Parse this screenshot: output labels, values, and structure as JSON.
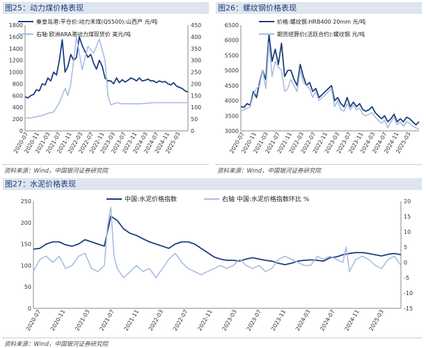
{
  "figures": [
    {
      "header": "图25：动力煤价格表现",
      "source": "资料来源：Wind，中国银河证券研究院"
    },
    {
      "header": "图26：螺纹钢价格表现",
      "source": "资料来源：Wind，中国银河证券研究院"
    },
    {
      "header": "图27：水泥价格表现",
      "source": "资料来源：Wind，中国银河证券研究院"
    }
  ],
  "colors": {
    "dark_series": "#1b3d7d",
    "light_series": "#a8bde0",
    "header_bg": "#dfe5ef"
  },
  "chart_data": [
    {
      "type": "line",
      "title": "动力煤价格表现",
      "x_tick_labels": [
        "2020-07",
        "2020-11",
        "2021-03",
        "2021-07",
        "2021-11",
        "2022-03",
        "2022-07",
        "2022-11",
        "2023-03",
        "2023-07",
        "2023-11",
        "2024-03",
        "2024-07",
        "2024-11",
        "2025-03"
      ],
      "ylim": [
        0,
        1800
      ],
      "yticks": [
        "0",
        "200",
        "400",
        "600",
        "800",
        "1000",
        "1200",
        "1400",
        "1600",
        "1800"
      ],
      "y2lim": [
        0,
        450
      ],
      "y2ticks": [
        "0",
        "50",
        "100",
        "150",
        "200",
        "250",
        "300",
        "350",
        "400",
        "450"
      ],
      "series": [
        {
          "name": "秦皇岛港:平仓价:动力末煤(Q5500):山西产 元/吨",
          "axis": "left",
          "x": [
            0,
            1,
            2,
            3,
            4,
            5,
            6,
            7,
            8,
            9,
            10,
            11,
            12,
            13,
            14,
            15,
            16,
            17,
            18,
            19,
            20,
            21,
            22,
            23,
            24,
            25,
            26,
            27,
            28,
            29,
            30,
            31,
            32,
            33,
            34,
            35,
            36,
            37,
            38,
            39,
            40,
            41,
            42,
            43,
            44,
            45,
            46,
            47,
            48,
            49,
            50,
            51,
            52,
            53,
            54,
            55,
            56,
            57
          ],
          "values": [
            580,
            560,
            600,
            620,
            700,
            680,
            800,
            780,
            900,
            850,
            1000,
            950,
            1200,
            1550,
            1000,
            1100,
            1300,
            1200,
            1250,
            1600,
            1450,
            1350,
            1250,
            1300,
            1150,
            1050,
            1200,
            1100,
            900,
            850,
            850,
            800,
            900,
            820,
            870,
            830,
            860,
            900,
            880,
            850,
            900,
            850,
            860,
            880,
            850,
            850,
            820,
            850,
            830,
            840,
            800,
            780,
            820,
            760,
            740,
            720,
            680,
            660
          ]
        },
        {
          "name": "右轴 欧洲ARA港动力煤现货价 美元/吨",
          "axis": "right",
          "x": [
            0,
            2,
            4,
            6,
            8,
            10,
            12,
            14,
            15,
            16,
            18,
            20,
            22,
            24,
            26,
            28,
            29,
            30,
            32,
            34,
            36,
            40,
            45,
            50,
            55,
            57
          ],
          "values": [
            55,
            55,
            60,
            65,
            75,
            80,
            120,
            180,
            150,
            200,
            400,
            260,
            360,
            330,
            390,
            300,
            150,
            110,
            120,
            115,
            115,
            115,
            120,
            120,
            120,
            120
          ]
        }
      ]
    },
    {
      "type": "line",
      "title": "螺纹钢价格表现",
      "x_tick_labels": [
        "2020-07",
        "2020-11",
        "2021-03",
        "2021-07",
        "2021-11",
        "2022-03",
        "2022-07",
        "2022-11",
        "2023-03",
        "2023-07",
        "2023-11",
        "2024-03",
        "2024-07",
        "2024-11",
        "2025-03"
      ],
      "ylim": [
        3000,
        6500
      ],
      "yticks": [
        "3000",
        "3500",
        "4000",
        "4500",
        "5000",
        "5500",
        "6000",
        "6500"
      ],
      "series": [
        {
          "name": "价格:螺纹钢:HRB400 20mm 元/吨",
          "x": [
            0,
            1,
            2,
            3,
            4,
            5,
            6,
            7,
            8,
            9,
            10,
            11,
            12,
            13,
            14,
            15,
            16,
            17,
            18,
            19,
            20,
            21,
            22,
            23,
            24,
            25,
            26,
            27,
            28,
            29,
            30,
            31,
            32,
            33,
            34,
            35,
            36,
            37,
            38,
            39,
            40,
            41,
            42,
            43,
            44,
            45,
            46,
            47,
            48,
            49,
            50,
            51,
            52,
            53,
            54,
            55,
            56,
            57
          ],
          "values": [
            3800,
            3780,
            3900,
            3850,
            4300,
            4100,
            4600,
            5000,
            4700,
            6200,
            5300,
            5700,
            5200,
            5900,
            4800,
            5000,
            5000,
            4700,
            4500,
            5200,
            4800,
            4500,
            4600,
            4300,
            4400,
            4100,
            4200,
            4300,
            4400,
            4500,
            4000,
            4100,
            3900,
            3800,
            4100,
            3800,
            3950,
            3800,
            3900,
            3700,
            3650,
            3700,
            3800,
            3600,
            3500,
            3400,
            3500,
            3300,
            3400,
            3550,
            3300,
            3400,
            3300,
            3450,
            3400,
            3300,
            3200,
            3300
          ]
        },
        {
          "name": "期货结算价(活跃合约):螺纹钢 元/吨",
          "x": [
            0,
            1,
            2,
            3,
            4,
            5,
            6,
            7,
            8,
            9,
            10,
            11,
            12,
            13,
            14,
            15,
            16,
            17,
            18,
            19,
            20,
            21,
            22,
            23,
            24,
            25,
            26,
            27,
            28,
            29,
            30,
            31,
            32,
            33,
            34,
            35,
            36,
            37,
            38,
            39,
            40,
            41,
            42,
            43,
            44,
            45,
            46,
            47,
            48,
            49,
            50,
            51,
            52,
            53,
            54,
            55,
            56,
            57
          ],
          "values": [
            3650,
            3700,
            3750,
            3800,
            4200,
            4400,
            4500,
            5000,
            4400,
            5900,
            4800,
            5300,
            5100,
            5000,
            4300,
            4400,
            4700,
            4500,
            4300,
            5000,
            4600,
            4500,
            4400,
            4100,
            4300,
            4000,
            4100,
            4200,
            4300,
            4400,
            3800,
            4000,
            3700,
            3650,
            3900,
            3700,
            3850,
            3700,
            3750,
            3550,
            3500,
            3550,
            3600,
            3450,
            3350,
            3250,
            3350,
            3100,
            3300,
            3450,
            3200,
            3300,
            3150,
            3300,
            3250,
            3150,
            3100,
            3050
          ]
        }
      ]
    },
    {
      "type": "line",
      "title": "水泥价格表现",
      "x_tick_labels": [
        "2020-07",
        "2020-11",
        "2021-03",
        "2021-07",
        "2021-11",
        "2022-03",
        "2022-07",
        "2022-11",
        "2023-03",
        "2023-07",
        "2023-11",
        "2024-03",
        "2024-07",
        "2024-11",
        "2025-03"
      ],
      "ylim": [
        0,
        250
      ],
      "yticks": [
        "0",
        "50",
        "100",
        "150",
        "200",
        "250"
      ],
      "y2lim": [
        -15,
        20
      ],
      "y2ticks": [
        "-15",
        "-10",
        "-5",
        "0",
        "5",
        "10",
        "15",
        "20"
      ],
      "series": [
        {
          "name": "中国:水泥价格指数",
          "axis": "left",
          "x": [
            0,
            1,
            2,
            3,
            4,
            5,
            6,
            7,
            8,
            9,
            10,
            11,
            12,
            13,
            14,
            15,
            16,
            17,
            18,
            19,
            20,
            21,
            22,
            23,
            24,
            25,
            26,
            27,
            28,
            29,
            30,
            31,
            32,
            33,
            34,
            35,
            36,
            37,
            38,
            39,
            40,
            41,
            42,
            43,
            44,
            45,
            46,
            47,
            48,
            49,
            50,
            51,
            52,
            53,
            54,
            55,
            56,
            57
          ],
          "values": [
            138,
            140,
            150,
            155,
            155,
            148,
            145,
            150,
            160,
            155,
            150,
            145,
            215,
            205,
            185,
            175,
            170,
            162,
            155,
            150,
            145,
            140,
            150,
            155,
            155,
            150,
            140,
            130,
            120,
            115,
            112,
            112,
            110,
            115,
            118,
            115,
            112,
            110,
            105,
            102,
            105,
            110,
            112,
            113,
            112,
            110,
            118,
            120,
            125,
            128,
            130,
            130,
            128,
            125,
            122,
            126,
            128,
            125
          ]
        },
        {
          "name": "右轴 中国:水泥价格指数环比 %",
          "axis": "right",
          "x": [
            0,
            1,
            2,
            3,
            4,
            5,
            6,
            7,
            8,
            9,
            10,
            11,
            11.5,
            12,
            12.5,
            13,
            14,
            15,
            16,
            17,
            18,
            19,
            20,
            21,
            22,
            23,
            24,
            25,
            26,
            27,
            28,
            29,
            30,
            31,
            32,
            33,
            34,
            35,
            36,
            37,
            38,
            39,
            40,
            41,
            42,
            43,
            44,
            45,
            46,
            47,
            48,
            48.5,
            49,
            50,
            51,
            52,
            53,
            54,
            55,
            56,
            57
          ],
          "values": [
            -3,
            1,
            2,
            0,
            2,
            -2,
            -1,
            2,
            3,
            -2,
            -3,
            -1,
            12,
            18,
            2,
            -2,
            -5,
            -3,
            -1,
            -3,
            -2,
            -5,
            -2,
            1,
            3,
            0,
            -2,
            -3,
            -4,
            -3,
            -2,
            -1,
            -2,
            -1,
            1,
            -1,
            -2,
            -1,
            -3,
            -2,
            1,
            2,
            1,
            0,
            -1,
            -1,
            2,
            1,
            2,
            1,
            0,
            5,
            -3,
            1,
            2,
            1,
            -1,
            -2,
            1,
            2,
            -1
          ]
        }
      ]
    }
  ]
}
